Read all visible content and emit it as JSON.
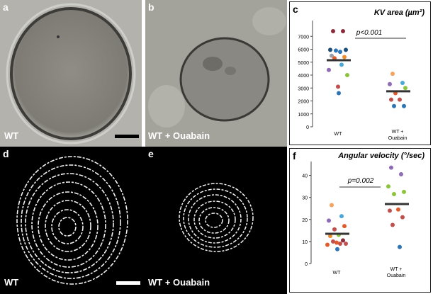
{
  "panels": {
    "a": {
      "label": "a",
      "caption": "WT"
    },
    "b": {
      "label": "b",
      "caption": "WT + Ouabain"
    },
    "c": {
      "label": "c"
    },
    "d": {
      "label": "d",
      "caption": "WT"
    },
    "e": {
      "label": "e",
      "caption": "WT + Ouabain"
    },
    "f": {
      "label": "f"
    }
  },
  "chart_data": [
    {
      "type": "scatter",
      "title": "KV area (µm²)",
      "categories": [
        "WT",
        "WT + Ouabain"
      ],
      "ylim": [
        0,
        8000
      ],
      "yticks": [
        0,
        1000,
        2000,
        3000,
        4000,
        5000,
        6000,
        7000
      ],
      "annotation": "p<0.001",
      "series": [
        {
          "category": "WT",
          "mean": 5150,
          "points": [
            {
              "y": 7400,
              "color": "#8b2c3c"
            },
            {
              "y": 7400,
              "color": "#8b2c3c"
            },
            {
              "y": 5950,
              "color": "#1f4e79"
            },
            {
              "y": 5950,
              "color": "#1f4e79"
            },
            {
              "y": 5900,
              "color": "#2e75b6"
            },
            {
              "y": 5800,
              "color": "#2e75b6"
            },
            {
              "y": 5500,
              "color": "#9aa0a6"
            },
            {
              "y": 5400,
              "color": "#f08c2c"
            },
            {
              "y": 5300,
              "color": "#e05a2a"
            },
            {
              "y": 4800,
              "color": "#4aa8d8"
            },
            {
              "y": 4400,
              "color": "#8e6bb5"
            },
            {
              "y": 4000,
              "color": "#8cc43c"
            },
            {
              "y": 3100,
              "color": "#c0504d"
            },
            {
              "y": 2600,
              "color": "#2e75b6"
            }
          ]
        },
        {
          "category": "WT + Ouabain",
          "mean": 2750,
          "points": [
            {
              "y": 4100,
              "color": "#f4a460"
            },
            {
              "y": 3400,
              "color": "#4aa8d8"
            },
            {
              "y": 3300,
              "color": "#8e6bb5"
            },
            {
              "y": 3000,
              "color": "#8cc43c"
            },
            {
              "y": 2600,
              "color": "#e05a2a"
            },
            {
              "y": 2100,
              "color": "#c0504d"
            },
            {
              "y": 2100,
              "color": "#c0504d"
            },
            {
              "y": 1600,
              "color": "#2e75b6"
            },
            {
              "y": 1600,
              "color": "#2e75b6"
            }
          ]
        }
      ]
    },
    {
      "type": "scatter",
      "title": "Angular velocity (°/sec)",
      "categories": [
        "WT",
        "WT + Ouabain"
      ],
      "ylim": [
        0,
        45
      ],
      "yticks": [
        0,
        10,
        20,
        30,
        40
      ],
      "annotation": "p=0.002",
      "series": [
        {
          "category": "WT",
          "mean": 13.5,
          "points": [
            {
              "y": 26.5,
              "color": "#f4a460"
            },
            {
              "y": 21.5,
              "color": "#4aa8d8"
            },
            {
              "y": 19.5,
              "color": "#8e6bb5"
            },
            {
              "y": 17,
              "color": "#e05a2a"
            },
            {
              "y": 15.5,
              "color": "#c0504d"
            },
            {
              "y": 13,
              "color": "#8cc43c"
            },
            {
              "y": 12.5,
              "color": "#f08c2c"
            },
            {
              "y": 10.5,
              "color": "#8b2c3c"
            },
            {
              "y": 10,
              "color": "#c0504d"
            },
            {
              "y": 9,
              "color": "#c0504d"
            },
            {
              "y": 8.5,
              "color": "#e05a2a"
            },
            {
              "y": 9,
              "color": "#c0504d"
            },
            {
              "y": 9.5,
              "color": "#e05a2a"
            },
            {
              "y": 6.5,
              "color": "#2e75b6"
            }
          ]
        },
        {
          "category": "WT + Ouabain",
          "mean": 27,
          "points": [
            {
              "y": 43.5,
              "color": "#8e6bb5"
            },
            {
              "y": 40.5,
              "color": "#8e6bb5"
            },
            {
              "y": 35,
              "color": "#8cc43c"
            },
            {
              "y": 32.5,
              "color": "#8cc43c"
            },
            {
              "y": 31.5,
              "color": "#8cc43c"
            },
            {
              "y": 24.5,
              "color": "#e05a2a"
            },
            {
              "y": 24,
              "color": "#c0504d"
            },
            {
              "y": 21,
              "color": "#c0504d"
            },
            {
              "y": 17.5,
              "color": "#c0504d"
            },
            {
              "y": 7.5,
              "color": "#2e75b6"
            }
          ]
        }
      ]
    }
  ]
}
